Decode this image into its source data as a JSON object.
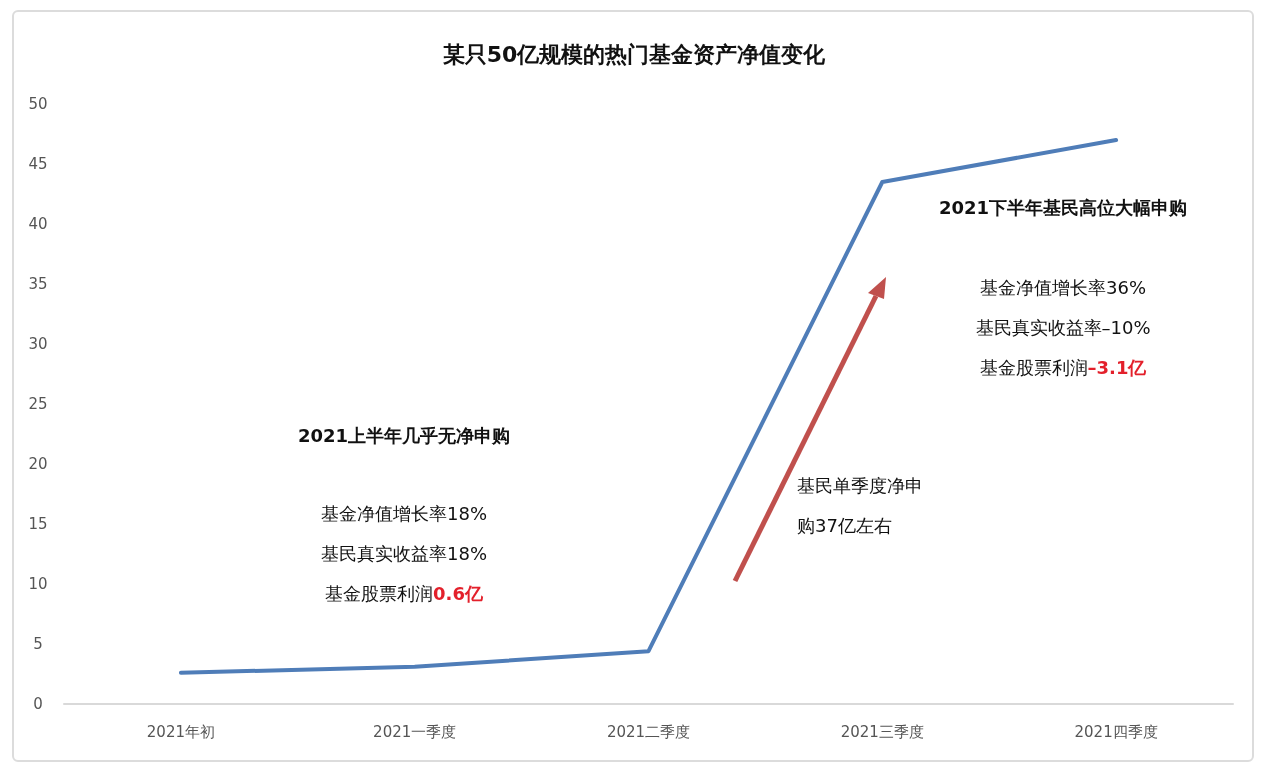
{
  "chart_data": {
    "type": "line",
    "title": "某只50亿规模的热门基金资产净值变化",
    "categories": [
      "2021年初",
      "2021一季度",
      "2021二季度",
      "2021三季度",
      "2021四季度"
    ],
    "series": [
      {
        "color": "#4f7db8",
        "values": [
          2.6,
          3.1,
          4.4,
          43.5,
          47.0
        ]
      }
    ],
    "ylim": [
      0,
      50
    ],
    "yticks": [
      0,
      5,
      10,
      15,
      20,
      25,
      30,
      35,
      40,
      45,
      50
    ],
    "grid": false,
    "marker": "none",
    "line_style": "solid",
    "annotations": [
      "2021上半年几乎无净申购",
      "基金净值增长率18%",
      "基民真实收益率18%",
      "基金股票利润0.6亿",
      "2021下半年基民高位大幅申购",
      "基金净值增长率36%",
      "基民真实收益率–10%",
      "基金股票利润–3.1亿",
      "基民单季度净申购37亿左右"
    ]
  }
}
